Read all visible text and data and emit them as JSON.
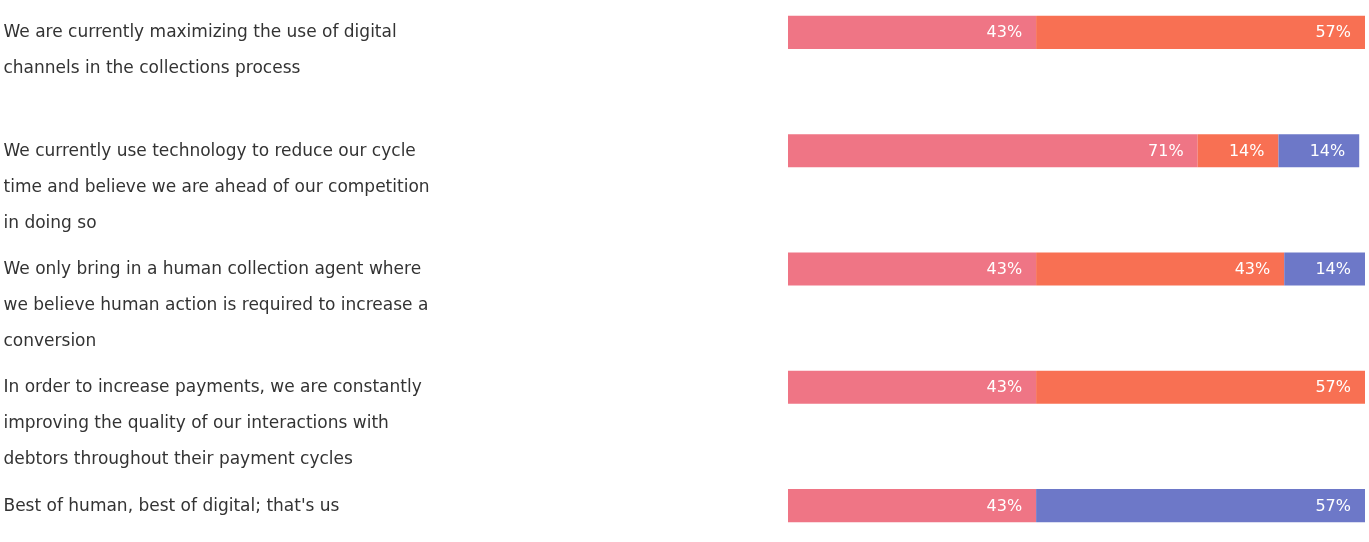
{
  "chart_data": {
    "type": "bar",
    "orientation": "horizontal",
    "stacked": true,
    "categories": [
      "We are currently maximizing the use of digital channels in the collections process",
      "We currently use technology to reduce our cycle time and believe we are ahead of our competition in doing so",
      "We only bring in a human collection agent where we believe human action is required to increase a conversion",
      "In order to increase payments, we are constantly improving the quality of our interactions with debtors throughout their payment cycles",
      "Best of human, best of digital; that's us"
    ],
    "series": [
      {
        "color": "#ef7585",
        "values": [
          43,
          71,
          43,
          43,
          43
        ],
        "value_labels": [
          "43%",
          "71%",
          "43%",
          "43%",
          "43%"
        ]
      },
      {
        "color": "#f87053",
        "values": [
          57,
          14,
          43,
          57,
          null
        ],
        "value_labels": [
          "57%",
          "14%",
          "43%",
          "57%",
          null
        ]
      },
      {
        "color": "#6d78c8",
        "values": [
          null,
          14,
          14,
          null,
          57
        ],
        "value_labels": [
          null,
          "14%",
          "14%",
          null,
          "57%"
        ]
      }
    ]
  }
}
